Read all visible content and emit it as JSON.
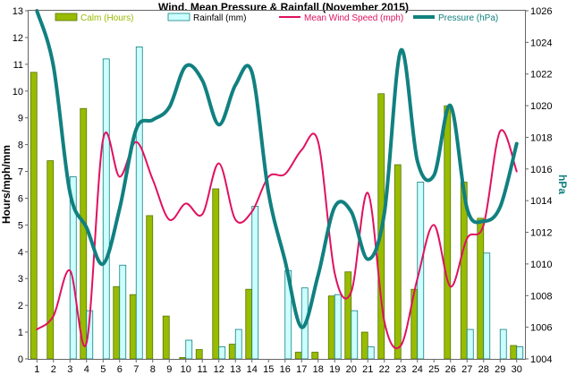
{
  "chart_data": {
    "type": "bar",
    "title": "Wind. Mean Pressure & Rainfall (November 2015)",
    "ylabel_left": "Hours/mph/mm",
    "ylabel_right": "hPa",
    "categories": [
      "1",
      "2",
      "3",
      "4",
      "5",
      "6",
      "7",
      "8",
      "9",
      "10",
      "11",
      "12",
      "13",
      "14",
      "15",
      "16",
      "17",
      "18",
      "19",
      "20",
      "21",
      "22",
      "23",
      "24",
      "25",
      "26",
      "27",
      "28",
      "29",
      "30"
    ],
    "ylim_left": [
      0,
      13
    ],
    "yticks_left": [
      "0",
      "1",
      "2",
      "3",
      "4",
      "5",
      "6",
      "7",
      "8",
      "9",
      "10",
      "11",
      "12",
      "13"
    ],
    "ylim_right": [
      1004,
      1026
    ],
    "yticks_right": [
      "1004",
      "1006",
      "1008",
      "1010",
      "1012",
      "1014",
      "1016",
      "1018",
      "1020",
      "1022",
      "1024",
      "1026"
    ],
    "grid": false,
    "legend_position": "top",
    "series": [
      {
        "name": "Calm (Hours)",
        "kind": "bar",
        "axis": "left",
        "color": "#99bb00",
        "values": [
          10.7,
          7.4,
          0,
          9.35,
          0,
          2.7,
          2.4,
          5.35,
          1.6,
          0.05,
          0.35,
          6.35,
          0.55,
          2.6,
          0,
          0,
          0.25,
          0.25,
          2.35,
          3.25,
          1.0,
          9.9,
          7.25,
          2.6,
          0,
          9.45,
          6.6,
          5.25,
          0,
          0.5
        ]
      },
      {
        "name": "Rainfall (mm)",
        "kind": "bar",
        "axis": "left",
        "color": "#ccffff",
        "values": [
          0,
          0,
          6.8,
          1.8,
          11.2,
          3.5,
          11.65,
          0,
          0,
          0.7,
          0,
          0.45,
          1.1,
          5.7,
          0,
          3.3,
          2.65,
          0,
          2.4,
          1.8,
          0.45,
          0,
          0,
          6.6,
          0,
          0,
          1.1,
          3.95,
          1.1,
          0.45
        ]
      },
      {
        "name": "Mean Wind Speed (mph)",
        "kind": "line",
        "axis": "left",
        "color": "#e0115f",
        "values": [
          1.1,
          1.6,
          3.3,
          0.6,
          8.2,
          6.8,
          8.1,
          6.7,
          5.2,
          5.8,
          5.4,
          7.3,
          5.2,
          5.5,
          6.8,
          6.9,
          7.8,
          8.1,
          3.2,
          2.5,
          6.2,
          1.4,
          0.5,
          3.0,
          5.0,
          2.7,
          4.5,
          5.0,
          8.5,
          7.0
        ]
      },
      {
        "name": "Pressure (hPa)",
        "kind": "line",
        "axis": "right",
        "color": "#118080",
        "values": [
          1026,
          1022.5,
          1014.5,
          1012.3,
          1010,
          1013.5,
          1018.5,
          1019.1,
          1019.9,
          1022.5,
          1021.6,
          1018.8,
          1021.3,
          1022.1,
          1014.5,
          1010.2,
          1006,
          1009.3,
          1013.6,
          1013.3,
          1010.3,
          1013.2,
          1023.5,
          1016.5,
          1015.6,
          1020,
          1013.5,
          1012.7,
          1013.6,
          1017.6
        ]
      }
    ]
  }
}
